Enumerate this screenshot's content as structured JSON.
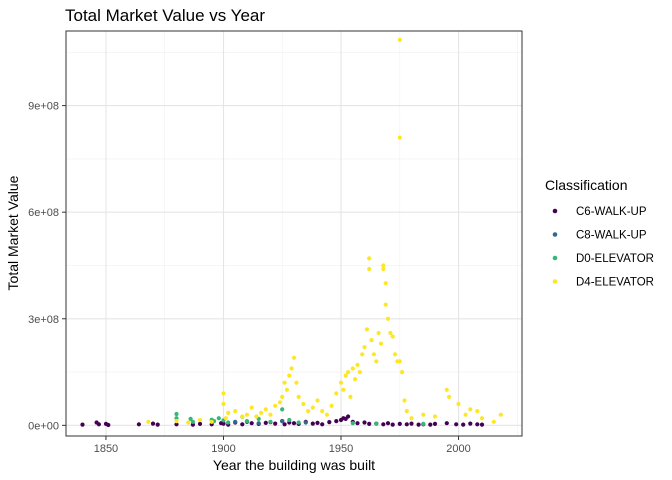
{
  "chart_data": {
    "type": "scatter",
    "title": "Total Market Value vs Year",
    "xlabel": "Year the building was built",
    "ylabel": "Total Market Value",
    "xlim": [
      1833,
      2027
    ],
    "ylim": [
      -30000000,
      1110000000
    ],
    "x_ticks": [
      1850,
      1900,
      1950,
      2000
    ],
    "x_tick_labels": [
      "1850",
      "1900",
      "1950",
      "2000"
    ],
    "y_ticks": [
      0,
      300000000,
      600000000,
      900000000
    ],
    "y_tick_labels": [
      "0e+00",
      "3e+08",
      "6e+08",
      "9e+08"
    ],
    "grid": true,
    "legend": {
      "title": "Classification",
      "position": "right"
    },
    "series": [
      {
        "name": "C6-WALK-UP",
        "color": "#440154",
        "points": [
          [
            1840,
            2000000
          ],
          [
            1846,
            8000000
          ],
          [
            1847,
            3000000
          ],
          [
            1850,
            4000000
          ],
          [
            1851,
            1000000
          ],
          [
            1864,
            3000000
          ],
          [
            1870,
            5000000
          ],
          [
            1872,
            2000000
          ],
          [
            1880,
            3000000
          ],
          [
            1887,
            2000000
          ],
          [
            1890,
            4000000
          ],
          [
            1895,
            3000000
          ],
          [
            1899,
            6000000
          ],
          [
            1900,
            5000000
          ],
          [
            1902,
            2000000
          ],
          [
            1905,
            8000000
          ],
          [
            1908,
            3000000
          ],
          [
            1910,
            10000000
          ],
          [
            1912,
            6000000
          ],
          [
            1915,
            4000000
          ],
          [
            1918,
            7000000
          ],
          [
            1920,
            9000000
          ],
          [
            1922,
            5000000
          ],
          [
            1925,
            12000000
          ],
          [
            1926,
            3000000
          ],
          [
            1928,
            8000000
          ],
          [
            1930,
            6000000
          ],
          [
            1932,
            4000000
          ],
          [
            1935,
            10000000
          ],
          [
            1938,
            5000000
          ],
          [
            1940,
            7000000
          ],
          [
            1942,
            3000000
          ],
          [
            1945,
            9000000
          ],
          [
            1948,
            12000000
          ],
          [
            1950,
            15000000
          ],
          [
            1951,
            20000000
          ],
          [
            1952,
            18000000
          ],
          [
            1953,
            25000000
          ],
          [
            1955,
            10000000
          ],
          [
            1957,
            6000000
          ],
          [
            1960,
            8000000
          ],
          [
            1962,
            4000000
          ],
          [
            1965,
            5000000
          ],
          [
            1968,
            3000000
          ],
          [
            1970,
            6000000
          ],
          [
            1972,
            2000000
          ],
          [
            1975,
            4000000
          ],
          [
            1978,
            3000000
          ],
          [
            1980,
            5000000
          ],
          [
            1983,
            2000000
          ],
          [
            1985,
            3000000
          ],
          [
            1988,
            2000000
          ],
          [
            1990,
            4000000
          ],
          [
            1995,
            6000000
          ],
          [
            1999,
            3000000
          ],
          [
            2002,
            2000000
          ],
          [
            2005,
            5000000
          ],
          [
            2008,
            3000000
          ],
          [
            2010,
            2000000
          ]
        ]
      },
      {
        "name": "C8-WALK-UP",
        "color": "#31688e",
        "points": [
          [
            1905,
            10000000
          ],
          [
            1915,
            6000000
          ],
          [
            1925,
            12000000
          ],
          [
            1935,
            8000000
          ]
        ]
      },
      {
        "name": "D0-ELEVATOR",
        "color": "#35b779",
        "points": [
          [
            1880,
            32000000
          ],
          [
            1880,
            20000000
          ],
          [
            1886,
            18000000
          ],
          [
            1887,
            10000000
          ],
          [
            1895,
            16000000
          ],
          [
            1896,
            12000000
          ],
          [
            1898,
            20000000
          ],
          [
            1900,
            14000000
          ],
          [
            1902,
            8000000
          ],
          [
            1908,
            24000000
          ],
          [
            1910,
            12000000
          ],
          [
            1915,
            18000000
          ],
          [
            1920,
            10000000
          ],
          [
            1925,
            45000000
          ],
          [
            1928,
            15000000
          ],
          [
            1932,
            8000000
          ],
          [
            1955,
            6000000
          ],
          [
            1965,
            5000000
          ],
          [
            1985,
            4000000
          ]
        ]
      },
      {
        "name": "D4-ELEVATOR",
        "color": "#fde725",
        "points": [
          [
            1868,
            10000000
          ],
          [
            1880,
            12000000
          ],
          [
            1885,
            8000000
          ],
          [
            1890,
            15000000
          ],
          [
            1895,
            10000000
          ],
          [
            1900,
            90000000
          ],
          [
            1900,
            60000000
          ],
          [
            1901,
            20000000
          ],
          [
            1902,
            35000000
          ],
          [
            1905,
            40000000
          ],
          [
            1908,
            25000000
          ],
          [
            1910,
            30000000
          ],
          [
            1912,
            50000000
          ],
          [
            1914,
            25000000
          ],
          [
            1916,
            35000000
          ],
          [
            1918,
            45000000
          ],
          [
            1920,
            30000000
          ],
          [
            1922,
            55000000
          ],
          [
            1924,
            65000000
          ],
          [
            1925,
            80000000
          ],
          [
            1926,
            120000000
          ],
          [
            1927,
            100000000
          ],
          [
            1928,
            140000000
          ],
          [
            1929,
            160000000
          ],
          [
            1930,
            190000000
          ],
          [
            1931,
            120000000
          ],
          [
            1932,
            80000000
          ],
          [
            1934,
            60000000
          ],
          [
            1936,
            40000000
          ],
          [
            1938,
            50000000
          ],
          [
            1940,
            70000000
          ],
          [
            1942,
            40000000
          ],
          [
            1944,
            30000000
          ],
          [
            1946,
            55000000
          ],
          [
            1948,
            90000000
          ],
          [
            1950,
            120000000
          ],
          [
            1951,
            100000000
          ],
          [
            1952,
            140000000
          ],
          [
            1953,
            150000000
          ],
          [
            1954,
            80000000
          ],
          [
            1955,
            160000000
          ],
          [
            1956,
            130000000
          ],
          [
            1957,
            170000000
          ],
          [
            1958,
            150000000
          ],
          [
            1959,
            200000000
          ],
          [
            1960,
            220000000
          ],
          [
            1961,
            270000000
          ],
          [
            1962,
            470000000
          ],
          [
            1962,
            440000000
          ],
          [
            1963,
            240000000
          ],
          [
            1964,
            200000000
          ],
          [
            1965,
            180000000
          ],
          [
            1966,
            260000000
          ],
          [
            1967,
            230000000
          ],
          [
            1968,
            440000000
          ],
          [
            1968,
            450000000
          ],
          [
            1969,
            400000000
          ],
          [
            1969,
            340000000
          ],
          [
            1970,
            300000000
          ],
          [
            1971,
            260000000
          ],
          [
            1972,
            250000000
          ],
          [
            1973,
            200000000
          ],
          [
            1974,
            180000000
          ],
          [
            1975,
            1085000000
          ],
          [
            1975,
            810000000
          ],
          [
            1975,
            180000000
          ],
          [
            1976,
            150000000
          ],
          [
            1977,
            70000000
          ],
          [
            1978,
            40000000
          ],
          [
            1980,
            20000000
          ],
          [
            1985,
            30000000
          ],
          [
            1990,
            25000000
          ],
          [
            1995,
            100000000
          ],
          [
            1996,
            80000000
          ],
          [
            2000,
            60000000
          ],
          [
            2003,
            30000000
          ],
          [
            2005,
            45000000
          ],
          [
            2008,
            40000000
          ],
          [
            2010,
            20000000
          ],
          [
            2015,
            10000000
          ],
          [
            2018,
            30000000
          ]
        ]
      }
    ]
  }
}
